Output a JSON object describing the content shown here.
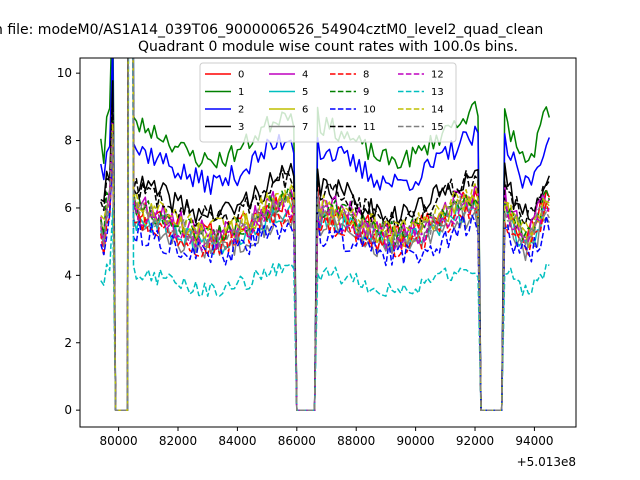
{
  "figure": {
    "suptitle": "n file: modeM0/AS1A14_039T06_9000006526_54904cztM0_level2_quad_clean"
  },
  "chart_data": {
    "type": "line",
    "title": "Quadrant 0 module wise count rates with 100.0s bins.",
    "xlabel": "",
    "ylabel": "",
    "x_offset_label": "+5.013e8",
    "xlim": [
      78700,
      95400
    ],
    "ylim": [
      -0.5,
      10.45
    ],
    "xticks": [
      80000,
      82000,
      84000,
      86000,
      88000,
      90000,
      92000,
      94000
    ],
    "xtick_labels": [
      "80000",
      "82000",
      "84000",
      "86000",
      "88000",
      "90000",
      "92000",
      "94000"
    ],
    "yticks": [
      0,
      2,
      4,
      6,
      8,
      10
    ],
    "ytick_labels": [
      "0",
      "2",
      "4",
      "6",
      "8",
      "10"
    ],
    "legend_location": "upper-center",
    "x_start": 79400,
    "bin_seconds": 100,
    "n_bins": 152,
    "gaps": [
      [
        79900,
        80300
      ],
      [
        86000,
        86600
      ],
      [
        92200,
        92900
      ]
    ],
    "segments": [
      {
        "start": 79400,
        "end": 79600
      },
      {
        "start": 80500,
        "end": 85900
      },
      {
        "start": 86700,
        "end": 92100
      },
      {
        "start": 93000,
        "end": 94500
      }
    ],
    "series": [
      {
        "name": "0",
        "color": "#ff0000",
        "style": "solid",
        "level": 5.6,
        "noise": 0.35,
        "seed": 11
      },
      {
        "name": "1",
        "color": "#008000",
        "style": "solid",
        "level": 7.9,
        "noise": 0.3,
        "seed": 23
      },
      {
        "name": "2",
        "color": "#0000ff",
        "style": "solid",
        "level": 7.2,
        "noise": 0.35,
        "seed": 37
      },
      {
        "name": "3",
        "color": "#000000",
        "style": "solid",
        "level": 6.2,
        "noise": 0.38,
        "seed": 41
      },
      {
        "name": "4",
        "color": "#bf00bf",
        "style": "solid",
        "level": 5.7,
        "noise": 0.38,
        "seed": 53
      },
      {
        "name": "5",
        "color": "#00bfbf",
        "style": "solid",
        "level": 5.3,
        "noise": 0.35,
        "seed": 67
      },
      {
        "name": "6",
        "color": "#bfbf00",
        "style": "solid",
        "level": 5.5,
        "noise": 0.35,
        "seed": 71
      },
      {
        "name": "7",
        "color": "#808080",
        "style": "solid",
        "level": 5.1,
        "noise": 0.35,
        "seed": 83
      },
      {
        "name": "8",
        "color": "#ff0000",
        "style": "dashed",
        "level": 5.2,
        "noise": 0.35,
        "seed": 97
      },
      {
        "name": "9",
        "color": "#008000",
        "style": "dashed",
        "level": 5.6,
        "noise": 0.35,
        "seed": 101
      },
      {
        "name": "10",
        "color": "#0000ff",
        "style": "dashed",
        "level": 4.9,
        "noise": 0.38,
        "seed": 113
      },
      {
        "name": "11",
        "color": "#000000",
        "style": "dashed",
        "level": 6.1,
        "noise": 0.35,
        "seed": 127
      },
      {
        "name": "12",
        "color": "#bf00bf",
        "style": "dashed",
        "level": 5.4,
        "noise": 0.35,
        "seed": 131
      },
      {
        "name": "13",
        "color": "#00bfbf",
        "style": "dashed",
        "level": 3.8,
        "noise": 0.25,
        "seed": 149
      },
      {
        "name": "14",
        "color": "#bfbf00",
        "style": "dashed",
        "level": 5.7,
        "noise": 0.35,
        "seed": 151
      },
      {
        "name": "15",
        "color": "#808080",
        "style": "dashed",
        "level": 5.5,
        "noise": 0.35,
        "seed": 163
      }
    ]
  }
}
